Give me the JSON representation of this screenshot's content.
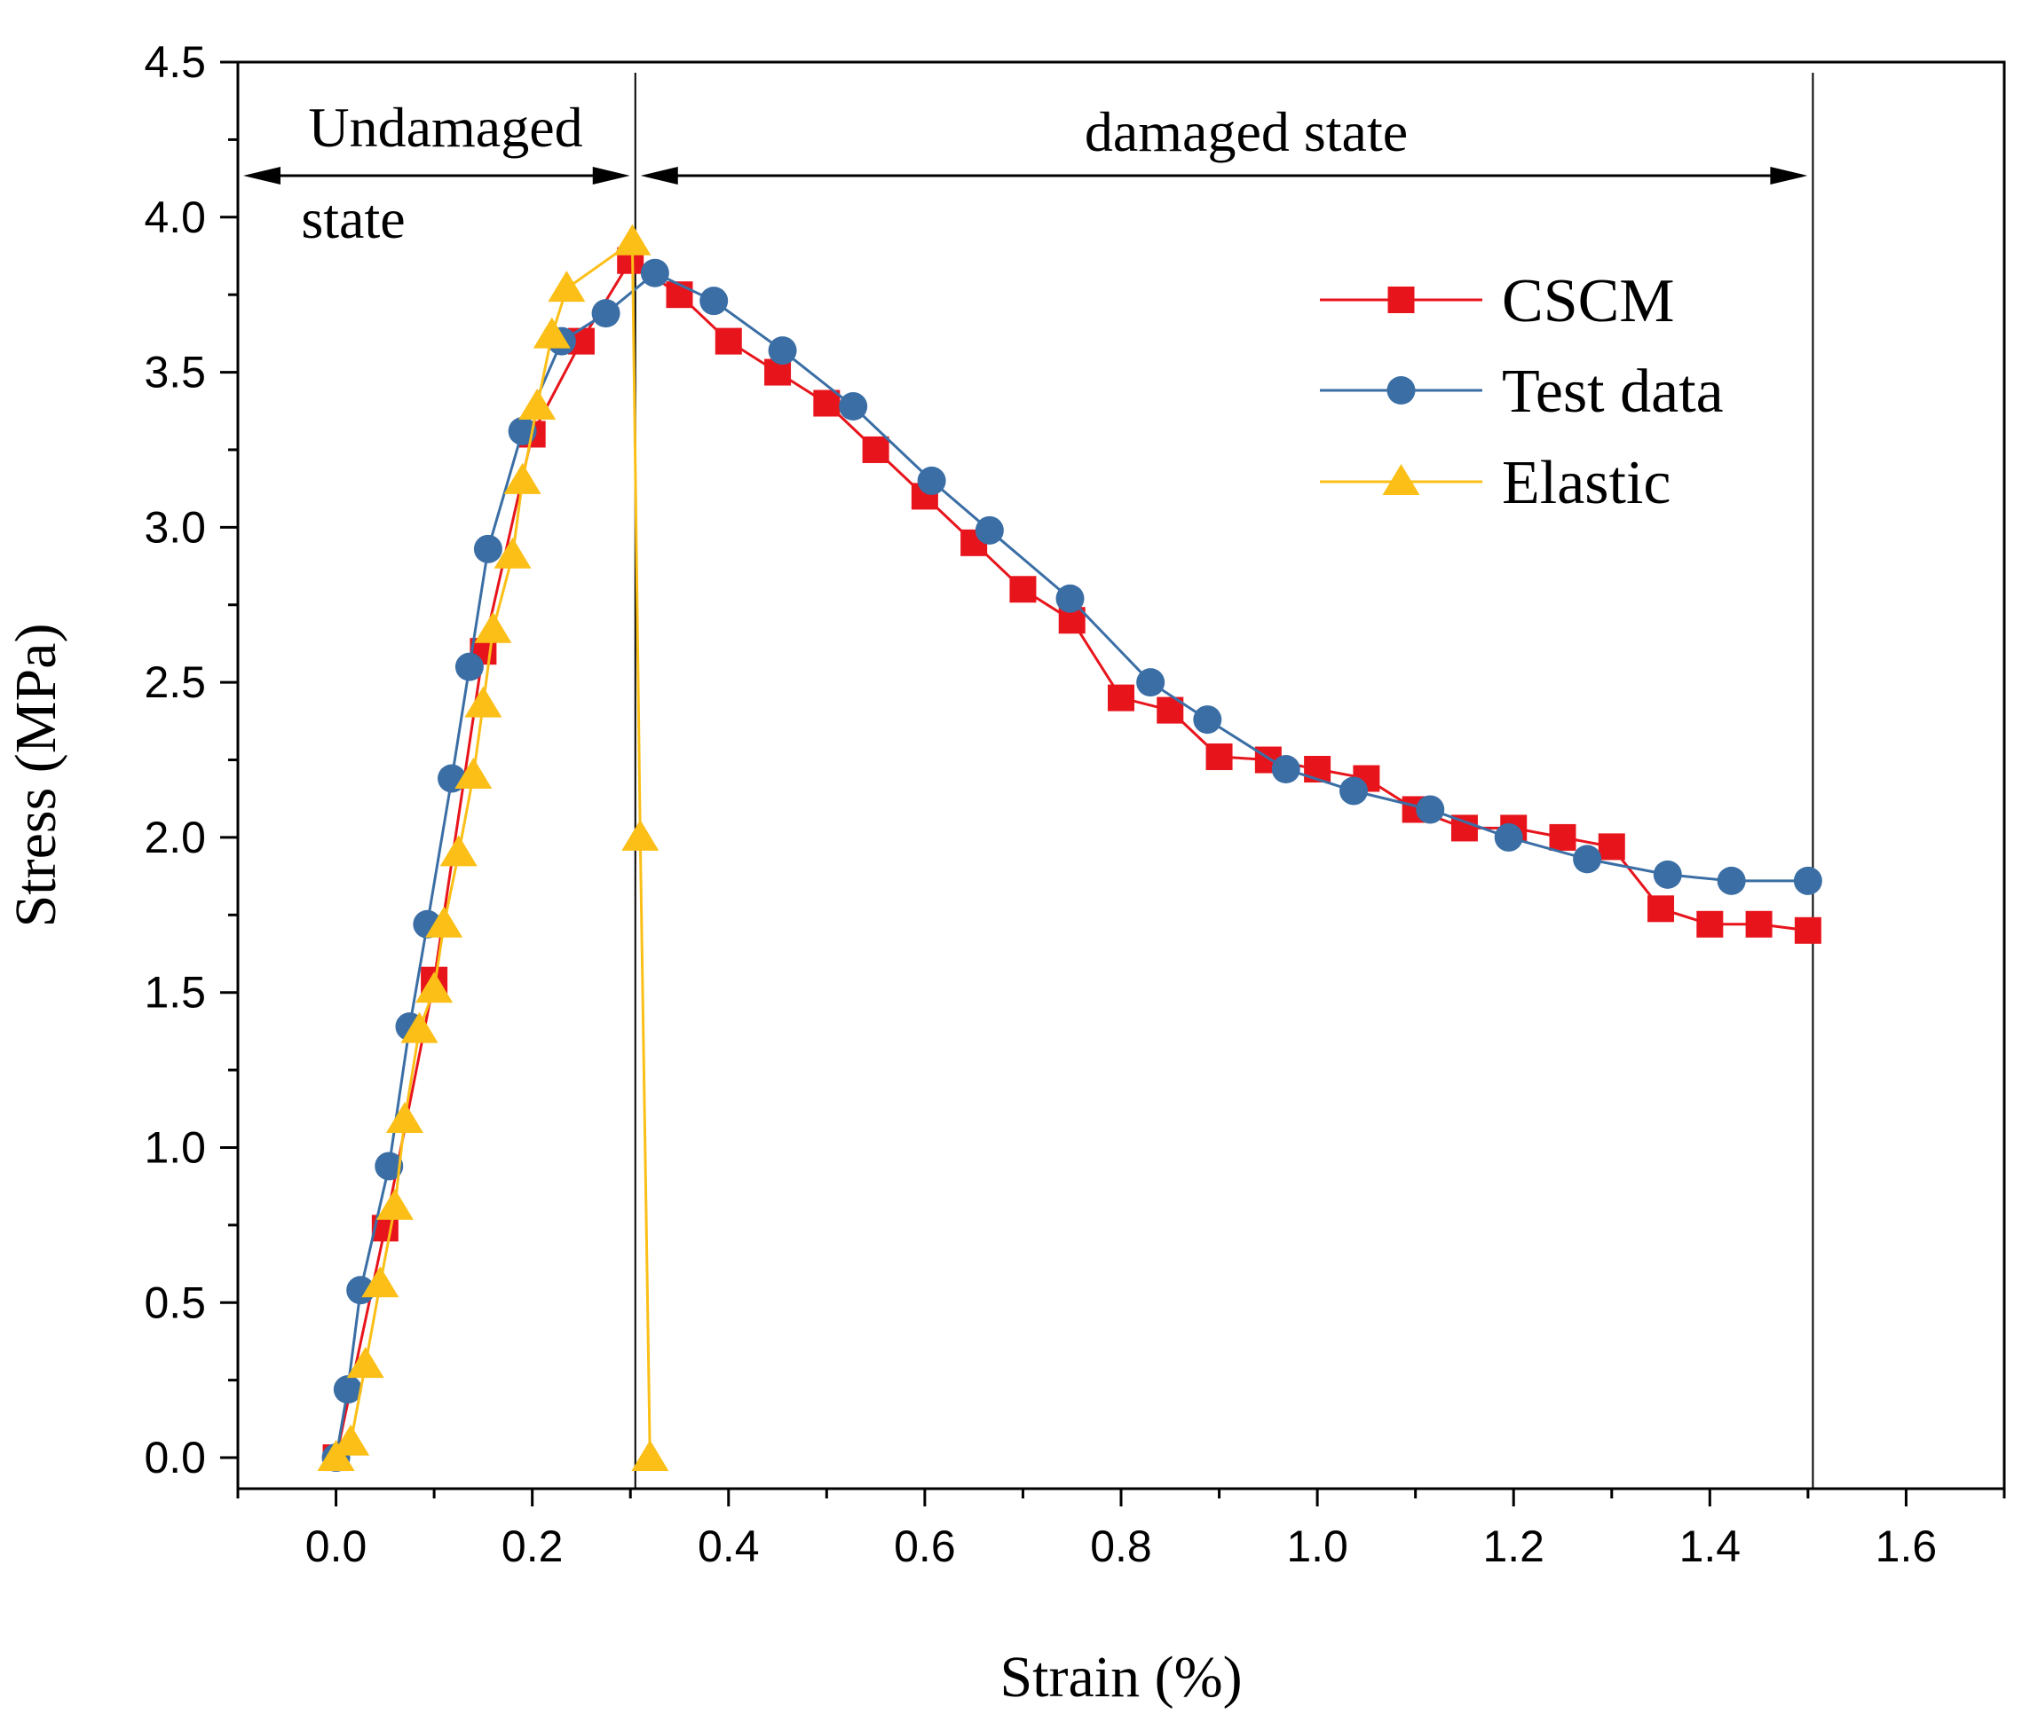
{
  "chart_data": {
    "type": "line",
    "title": "",
    "xlabel": "Strain (%)",
    "ylabel": "Stress (MPa)",
    "xlim": [
      -0.1,
      1.7
    ],
    "ylim": [
      -0.1,
      4.5
    ],
    "xticks": [
      "0.0",
      "0.2",
      "0.4",
      "0.6",
      "0.8",
      "1.0",
      "1.2",
      "1.4",
      "1.6"
    ],
    "xtick_values": [
      0.0,
      0.2,
      0.4,
      0.6,
      0.8,
      1.0,
      1.2,
      1.4,
      1.6
    ],
    "yticks": [
      "0.0",
      "0.5",
      "1.0",
      "1.5",
      "2.0",
      "2.5",
      "3.0",
      "3.5",
      "4.0",
      "4.5"
    ],
    "ytick_values": [
      0.0,
      0.5,
      1.0,
      1.5,
      2.0,
      2.5,
      3.0,
      3.5,
      4.0,
      4.5
    ],
    "legend_position": "top-right",
    "grid": false,
    "series": [
      {
        "name": "CSCM",
        "color": "#e8141c",
        "marker": "square",
        "points": [
          [
            0.0,
            0.0
          ],
          [
            0.05,
            0.74
          ],
          [
            0.1,
            1.54
          ],
          [
            0.15,
            2.6
          ],
          [
            0.2,
            3.3
          ],
          [
            0.25,
            3.6
          ],
          [
            0.3,
            3.86
          ],
          [
            0.35,
            3.75
          ],
          [
            0.4,
            3.6
          ],
          [
            0.45,
            3.5
          ],
          [
            0.5,
            3.4
          ],
          [
            0.55,
            3.25
          ],
          [
            0.6,
            3.1
          ],
          [
            0.65,
            2.95
          ],
          [
            0.7,
            2.8
          ],
          [
            0.75,
            2.7
          ],
          [
            0.8,
            2.45
          ],
          [
            0.85,
            2.41
          ],
          [
            0.9,
            2.26
          ],
          [
            0.95,
            2.25
          ],
          [
            1.0,
            2.22
          ],
          [
            1.05,
            2.19
          ],
          [
            1.1,
            2.09
          ],
          [
            1.15,
            2.03
          ],
          [
            1.2,
            2.03
          ],
          [
            1.25,
            2.0
          ],
          [
            1.3,
            1.97
          ],
          [
            1.35,
            1.77
          ],
          [
            1.4,
            1.72
          ],
          [
            1.45,
            1.72
          ],
          [
            1.5,
            1.7
          ]
        ]
      },
      {
        "name": "Test data",
        "color": "#3a6ea5",
        "marker": "circle",
        "points": [
          [
            0.0,
            0.0
          ],
          [
            0.012,
            0.22
          ],
          [
            0.025,
            0.54
          ],
          [
            0.054,
            0.94
          ],
          [
            0.075,
            1.39
          ],
          [
            0.093,
            1.72
          ],
          [
            0.118,
            2.19
          ],
          [
            0.136,
            2.55
          ],
          [
            0.155,
            2.93
          ],
          [
            0.19,
            3.31
          ],
          [
            0.23,
            3.6
          ],
          [
            0.275,
            3.69
          ],
          [
            0.325,
            3.82
          ],
          [
            0.385,
            3.73
          ],
          [
            0.455,
            3.57
          ],
          [
            0.527,
            3.39
          ],
          [
            0.607,
            3.15
          ],
          [
            0.666,
            2.99
          ],
          [
            0.748,
            2.77
          ],
          [
            0.83,
            2.5
          ],
          [
            0.888,
            2.38
          ],
          [
            0.968,
            2.22
          ],
          [
            1.037,
            2.15
          ],
          [
            1.115,
            2.09
          ],
          [
            1.195,
            2.0
          ],
          [
            1.275,
            1.93
          ],
          [
            1.357,
            1.88
          ],
          [
            1.422,
            1.86
          ],
          [
            1.5,
            1.86
          ]
        ]
      },
      {
        "name": "Elastic",
        "color": "#fbbf17",
        "marker": "triangle",
        "points": [
          [
            0.0,
            0.0
          ],
          [
            0.015,
            0.05
          ],
          [
            0.03,
            0.3
          ],
          [
            0.045,
            0.56
          ],
          [
            0.06,
            0.81
          ],
          [
            0.07,
            1.09
          ],
          [
            0.085,
            1.38
          ],
          [
            0.1,
            1.51
          ],
          [
            0.11,
            1.72
          ],
          [
            0.125,
            1.95
          ],
          [
            0.14,
            2.2
          ],
          [
            0.15,
            2.43
          ],
          [
            0.16,
            2.67
          ],
          [
            0.18,
            2.91
          ],
          [
            0.19,
            3.15
          ],
          [
            0.205,
            3.39
          ],
          [
            0.22,
            3.62
          ],
          [
            0.235,
            3.77
          ],
          [
            0.302,
            3.92
          ],
          [
            0.31,
            2.0
          ],
          [
            0.32,
            0.0
          ]
        ]
      }
    ],
    "annotations": {
      "left_region_line1": "Undamaged",
      "left_region_line2": "state",
      "right_region": "damaged state",
      "left_bounds": [
        -0.1,
        0.305
      ],
      "right_bounds": [
        0.305,
        1.505
      ],
      "divider_x": [
        0.305,
        1.505
      ]
    }
  }
}
